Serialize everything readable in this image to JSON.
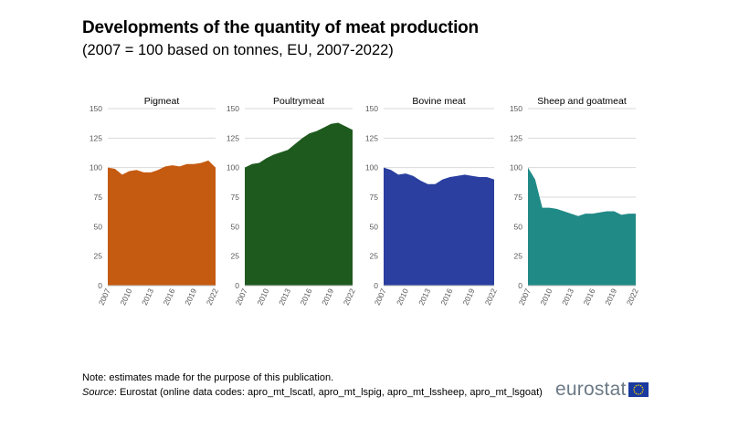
{
  "title": "Developments of the quantity of meat production",
  "subtitle": "(2007 = 100 based on tonnes, EU, 2007-2022)",
  "note": "Note: estimates made for the purpose of this publication.",
  "source_label": "Source",
  "source_text": ": Eurostat (online data codes: apro_mt_lscatl, apro_mt_lspig, apro_mt_lssheep, apro_mt_lsgoat)",
  "logo_text": "eurostat",
  "chart_data": [
    {
      "type": "area",
      "title": "Pigmeat",
      "color": "#c55a11",
      "x": [
        2007,
        2008,
        2009,
        2010,
        2011,
        2012,
        2013,
        2014,
        2015,
        2016,
        2017,
        2018,
        2019,
        2020,
        2021,
        2022
      ],
      "values": [
        100,
        99,
        94,
        97,
        98,
        96,
        96,
        98,
        101,
        102,
        101,
        103,
        103,
        104,
        106,
        100
      ],
      "ylim": [
        0,
        150
      ],
      "yticks": [
        0,
        25,
        50,
        75,
        100,
        125,
        150
      ],
      "xticks": [
        2007,
        2010,
        2013,
        2016,
        2019,
        2022
      ],
      "grid": true
    },
    {
      "type": "area",
      "title": "Poultrymeat",
      "color": "#1e5a1e",
      "x": [
        2007,
        2008,
        2009,
        2010,
        2011,
        2012,
        2013,
        2014,
        2015,
        2016,
        2017,
        2018,
        2019,
        2020,
        2021,
        2022
      ],
      "values": [
        100,
        103,
        104,
        108,
        111,
        113,
        115,
        120,
        125,
        129,
        131,
        134,
        137,
        138,
        135,
        132
      ],
      "ylim": [
        0,
        150
      ],
      "yticks": [
        0,
        25,
        50,
        75,
        100,
        125,
        150
      ],
      "xticks": [
        2007,
        2010,
        2013,
        2016,
        2019,
        2022
      ],
      "grid": true
    },
    {
      "type": "area",
      "title": "Bovine meat",
      "color": "#2a3f9f",
      "x": [
        2007,
        2008,
        2009,
        2010,
        2011,
        2012,
        2013,
        2014,
        2015,
        2016,
        2017,
        2018,
        2019,
        2020,
        2021,
        2022
      ],
      "values": [
        100,
        98,
        94,
        95,
        93,
        89,
        86,
        86,
        90,
        92,
        93,
        94,
        93,
        92,
        92,
        90
      ],
      "ylim": [
        0,
        150
      ],
      "yticks": [
        0,
        25,
        50,
        75,
        100,
        125,
        150
      ],
      "xticks": [
        2007,
        2010,
        2013,
        2016,
        2019,
        2022
      ],
      "grid": true
    },
    {
      "type": "area",
      "title": "Sheep and goatmeat",
      "color": "#208a86",
      "x": [
        2007,
        2008,
        2009,
        2010,
        2011,
        2012,
        2013,
        2014,
        2015,
        2016,
        2017,
        2018,
        2019,
        2020,
        2021,
        2022
      ],
      "values": [
        100,
        90,
        66,
        66,
        65,
        63,
        61,
        59,
        61,
        61,
        62,
        63,
        63,
        60,
        61,
        61
      ],
      "ylim": [
        0,
        150
      ],
      "yticks": [
        0,
        25,
        50,
        75,
        100,
        125,
        150
      ],
      "xticks": [
        2007,
        2010,
        2013,
        2016,
        2019,
        2022
      ],
      "grid": true
    }
  ]
}
